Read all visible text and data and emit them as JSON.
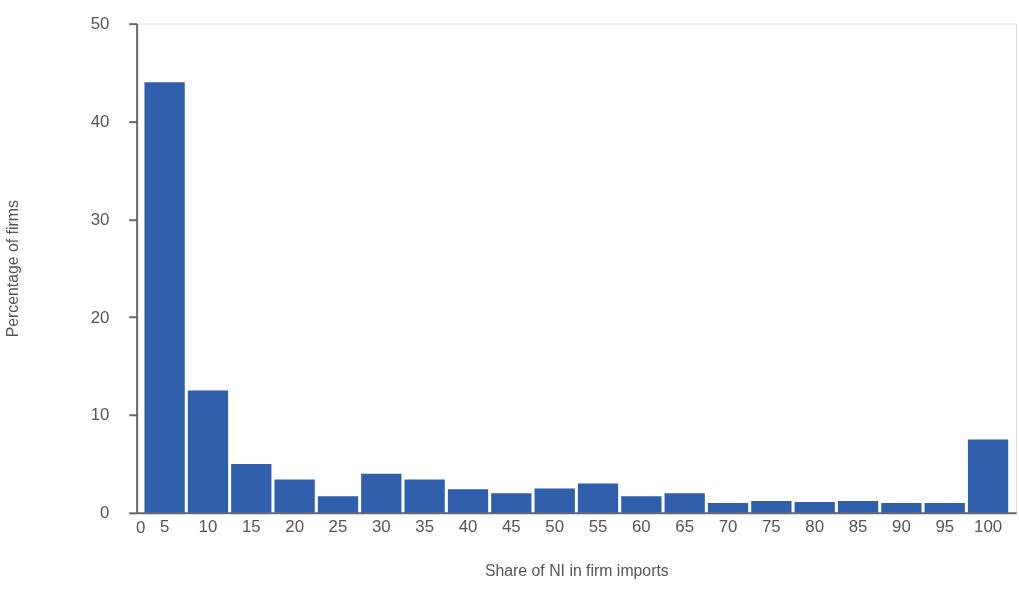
{
  "chart_data": {
    "type": "bar",
    "xlabel": "Share of NI in firm imports",
    "ylabel": "Percentage of firms",
    "categories": [
      "5",
      "10",
      "15",
      "20",
      "25",
      "30",
      "35",
      "40",
      "45",
      "50",
      "55",
      "60",
      "65",
      "70",
      "75",
      "80",
      "85",
      "90",
      "95",
      "100"
    ],
    "values": [
      44.0,
      12.5,
      5.0,
      3.4,
      1.7,
      4.0,
      3.4,
      2.4,
      2.0,
      2.5,
      3.0,
      1.7,
      2.0,
      1.0,
      1.2,
      1.1,
      1.2,
      1.0,
      1.0,
      7.5
    ],
    "color": "#2f5eaa",
    "ylim": [
      0,
      50
    ],
    "yticks": [
      0,
      10,
      20,
      30,
      40,
      50
    ],
    "grid": false,
    "annotations": [
      "0"
    ]
  }
}
